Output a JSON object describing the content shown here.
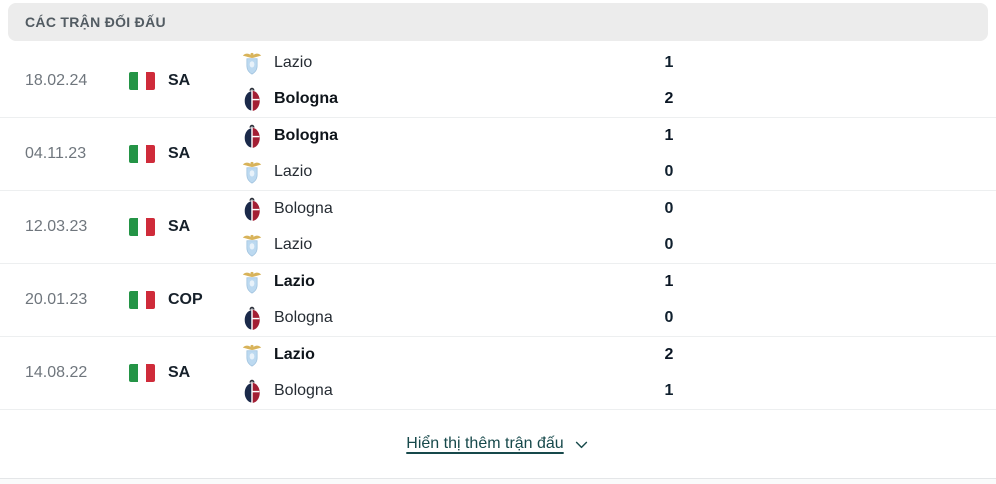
{
  "header": {
    "title": "CÁC TRẬN ĐỐI ĐẤU"
  },
  "matches": [
    {
      "date": "18.02.24",
      "competition": "SA",
      "flag": "italy-flag",
      "home": {
        "name": "Lazio",
        "logo": "lazio",
        "score": "1",
        "strong": "false"
      },
      "away": {
        "name": "Bologna",
        "logo": "bologna",
        "score": "2",
        "strong": "true"
      }
    },
    {
      "date": "04.11.23",
      "competition": "SA",
      "flag": "italy-flag",
      "home": {
        "name": "Bologna",
        "logo": "bologna",
        "score": "1",
        "strong": "true"
      },
      "away": {
        "name": "Lazio",
        "logo": "lazio",
        "score": "0",
        "strong": "false"
      }
    },
    {
      "date": "12.03.23",
      "competition": "SA",
      "flag": "italy-flag",
      "home": {
        "name": "Bologna",
        "logo": "bologna",
        "score": "0",
        "strong": "false"
      },
      "away": {
        "name": "Lazio",
        "logo": "lazio",
        "score": "0",
        "strong": "false"
      }
    },
    {
      "date": "20.01.23",
      "competition": "COP",
      "flag": "italy-flag",
      "home": {
        "name": "Lazio",
        "logo": "lazio",
        "score": "1",
        "strong": "true"
      },
      "away": {
        "name": "Bologna",
        "logo": "bologna",
        "score": "0",
        "strong": "false"
      }
    },
    {
      "date": "14.08.22",
      "competition": "SA",
      "flag": "italy-flag",
      "home": {
        "name": "Lazio",
        "logo": "lazio",
        "score": "2",
        "strong": "true"
      },
      "away": {
        "name": "Bologna",
        "logo": "bologna",
        "score": "1",
        "strong": "false"
      }
    }
  ],
  "footer": {
    "show_more_label": "Hiển thị thêm trận đấu",
    "chevron_icon": "chevron-down-icon"
  },
  "colors": {
    "header_bg": "#ececec",
    "header_text": "#525b62",
    "date_text": "#6f767d",
    "score_text": "#10202e",
    "link_accent": "#17494b",
    "flag_green": "#249446",
    "flag_red": "#cf2b3a",
    "lazio_blue": "#bcd9f0",
    "lazio_gold": "#d8b35a",
    "bologna_navy": "#1b2a4a",
    "bologna_red": "#a31f34"
  }
}
